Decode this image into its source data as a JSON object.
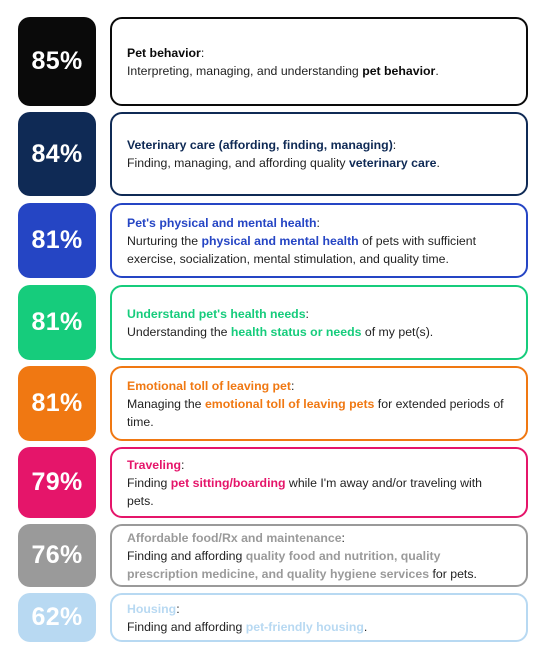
{
  "items": [
    {
      "percent": "85%",
      "color": "#0a0a0a",
      "title": "Pet behavior",
      "colon": ":",
      "desc_before": "Interpreting, managing, and understanding ",
      "desc_bold": "pet behavior",
      "desc_after": "."
    },
    {
      "percent": "84%",
      "color": "#0f2a55",
      "title": "Veterinary care (affording, finding, managing)",
      "colon": ":",
      "desc_before": "Finding, managing, and affording quality ",
      "desc_bold": "veterinary care",
      "desc_after": "."
    },
    {
      "percent": "81%",
      "color": "#2545c4",
      "title": "Pet's physical and mental health",
      "colon": ":",
      "desc_before": "Nurturing the ",
      "desc_bold": "physical and mental health",
      "desc_after": " of pets with sufficient exercise, socialization, mental stimulation, and quality time."
    },
    {
      "percent": "81%",
      "color": "#16cc7c",
      "title": "Understand pet's health needs",
      "colon": ":",
      "desc_before": "Understanding the ",
      "desc_bold": "health status or needs",
      "desc_after": " of my pet(s)."
    },
    {
      "percent": "81%",
      "color": "#f07812",
      "title": "Emotional toll of leaving pet",
      "colon": ":",
      "desc_before": "Managing the ",
      "desc_bold": "emotional toll of leaving pets",
      "desc_after": " for extended periods of time."
    },
    {
      "percent": "79%",
      "color": "#e5156a",
      "title": "Traveling",
      "colon": ":",
      "desc_before": "Finding ",
      "desc_bold": "pet sitting/boarding",
      "desc_after": " while I'm away and/or traveling with pets."
    },
    {
      "percent": "76%",
      "color": "#9a9a9a",
      "title": "Affordable food/Rx and maintenance",
      "colon": ":",
      "desc_before": "Finding and affording ",
      "desc_bold": "quality food and nutrition, quality prescription medicine, and quality hygiene services",
      "desc_after": " for pets."
    },
    {
      "percent": "62%",
      "color": "#b8d9f2",
      "title": "Housing",
      "colon": ":",
      "desc_before": "Finding and affording ",
      "desc_bold": "pet-friendly housing",
      "desc_after": "."
    }
  ],
  "text_color": "#222222"
}
